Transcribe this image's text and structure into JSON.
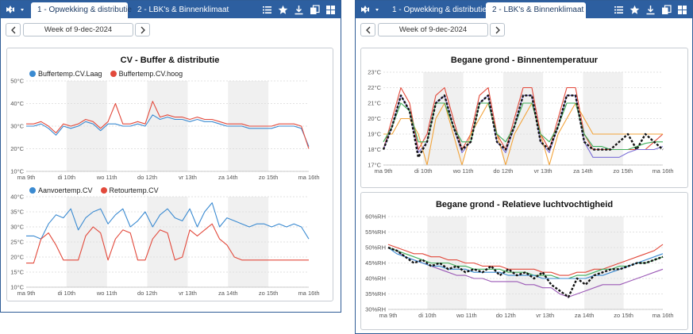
{
  "colors": {
    "header": "#2d5fa0",
    "blue": "#3a8ad1",
    "red": "#e2493b",
    "band": "#f0f0f0"
  },
  "windows": [
    {
      "tabs": [
        {
          "label": "1 - Opwekking & distributie",
          "active": true
        },
        {
          "label": "2 - LBK's & Binnenklimaat",
          "active": false
        }
      ],
      "toolbar_icons": [
        "list-icon",
        "star-icon",
        "download-icon",
        "copy-window-icon",
        "grid-icon"
      ],
      "week_label": "Week of 9-dec-2024",
      "chart_title": "CV - Buffer & distributie"
    },
    {
      "tabs": [
        {
          "label": "1 - Opwekking & distributie",
          "active": false
        },
        {
          "label": "2 - LBK's & Binnenklimaat",
          "active": true
        }
      ],
      "toolbar_icons": [
        "list-icon",
        "star-icon",
        "download-icon",
        "copy-window-icon",
        "grid-icon"
      ],
      "week_label": "Week of 9-dec-2024"
    }
  ],
  "chart_data": [
    {
      "type": "line",
      "title": "",
      "x_ticks": [
        "ma 9th",
        "di 10th",
        "wo 11th",
        "do 12th",
        "vr 13th",
        "za 14th",
        "zo 15th",
        "ma 16th"
      ],
      "y_ticks": [
        "50°C",
        "40°C",
        "30°C",
        "20°C",
        "10°C"
      ],
      "ylim": [
        10,
        50
      ],
      "legend": "top-left",
      "series": [
        {
          "name": "Buffertemp.CV.Laag",
          "color": "#3a8ad1",
          "values": [
            30,
            30,
            31,
            29,
            26,
            30,
            29,
            30,
            32,
            31,
            28,
            31,
            31,
            30,
            30,
            31,
            30,
            35,
            33,
            34,
            33,
            33,
            32,
            33,
            32,
            32,
            31,
            30,
            30,
            30,
            29,
            29,
            29,
            29,
            30,
            30,
            30,
            29,
            21
          ]
        },
        {
          "name": "Buffertemp.CV.hoog",
          "color": "#e2493b",
          "values": [
            31,
            31,
            32,
            30,
            27,
            31,
            30,
            31,
            33,
            32,
            29,
            32,
            40,
            31,
            31,
            32,
            31,
            41,
            34,
            35,
            34,
            34,
            33,
            34,
            33,
            33,
            32,
            31,
            31,
            31,
            30,
            30,
            30,
            30,
            31,
            31,
            31,
            30,
            20
          ]
        }
      ]
    },
    {
      "type": "line",
      "title": "",
      "x_ticks": [
        "ma 9th",
        "di 10th",
        "wo 11th",
        "do 12th",
        "vr 13th",
        "za 14th",
        "zo 15th",
        "ma 16th"
      ],
      "y_ticks": [
        "40°C",
        "35°C",
        "30°C",
        "25°C",
        "20°C",
        "15°C",
        "10°C"
      ],
      "ylim": [
        10,
        40
      ],
      "legend": "top-left",
      "series": [
        {
          "name": "Aanvoertemp.CV",
          "color": "#3a8ad1",
          "values": [
            27,
            27,
            26,
            31,
            34,
            33,
            36,
            29,
            33,
            35,
            36,
            31,
            34,
            36,
            30,
            32,
            35,
            30,
            34,
            36,
            33,
            32,
            36,
            30,
            35,
            38,
            30,
            33,
            32,
            31,
            30,
            31,
            31,
            30,
            31,
            30,
            31,
            30,
            26
          ]
        },
        {
          "name": "Retourtemp.CV",
          "color": "#e2493b",
          "values": [
            18,
            18,
            26,
            28,
            24,
            19,
            19,
            19,
            27,
            30,
            28,
            19,
            26,
            29,
            28,
            19,
            19,
            26,
            29,
            28,
            19,
            20,
            29,
            27,
            29,
            31,
            26,
            24,
            20,
            19,
            19,
            19,
            19,
            19,
            19,
            19,
            19,
            19,
            19
          ]
        }
      ]
    },
    {
      "type": "line",
      "title": "Begane grond - Binnentemperatuur",
      "x_ticks": [
        "ma 9th",
        "di 10th",
        "wo 11th",
        "do 12th",
        "vr 13th",
        "za 14th",
        "zo 15th",
        "ma 16th"
      ],
      "y_ticks": [
        "23°C",
        "22°C",
        "21°C",
        "20°C",
        "19°C",
        "18°C",
        "17°C"
      ],
      "ylim": [
        17,
        23
      ],
      "legend": "none",
      "series": [
        {
          "color": "#e2493b",
          "values": [
            18,
            20,
            22,
            21,
            18,
            19,
            21.5,
            22,
            20,
            18,
            19,
            21.5,
            22,
            19,
            18,
            20,
            22,
            22,
            19,
            18,
            20,
            22,
            22,
            19,
            18,
            18,
            18,
            18,
            18,
            18,
            18,
            18.5,
            19
          ]
        },
        {
          "color": "#7b6fd6",
          "values": [
            18,
            19.5,
            21.5,
            20.5,
            17.8,
            18.5,
            21,
            21.5,
            19.5,
            17.8,
            18.5,
            21,
            21.5,
            18.5,
            17.8,
            19.5,
            21.5,
            21.5,
            18.5,
            17.8,
            19.5,
            21.5,
            21.5,
            18.5,
            17.5,
            17.5,
            17.5,
            17.5,
            17.8,
            18,
            18,
            18,
            18.2
          ]
        },
        {
          "color": "#f2a33a",
          "values": [
            19,
            19,
            20,
            20,
            19,
            17,
            20,
            21,
            19,
            17,
            19,
            20,
            21,
            19,
            17,
            19,
            20,
            21,
            19,
            17,
            19,
            20,
            21,
            20,
            19,
            19,
            19,
            19,
            19,
            19,
            19,
            19,
            19
          ]
        },
        {
          "color": "#3fae5a",
          "values": [
            18.5,
            19.5,
            21,
            20.5,
            18.5,
            18.5,
            21,
            21,
            19.5,
            18.5,
            18.5,
            21,
            21,
            19,
            18.5,
            19.5,
            21,
            21,
            19,
            18.5,
            19.5,
            21,
            21,
            19,
            18.2,
            18.2,
            18,
            18,
            18,
            18.2,
            18.4,
            18.5,
            18.5
          ]
        },
        {
          "color": "#111111",
          "dashed": true,
          "values": [
            18,
            19.5,
            21.5,
            20.5,
            17.5,
            18.5,
            21,
            21.5,
            19.5,
            18,
            18.5,
            21,
            21.5,
            18.5,
            18,
            19.5,
            21.5,
            21.5,
            18.5,
            18,
            19.5,
            21.5,
            21.5,
            18.5,
            18,
            18,
            18,
            18.5,
            19,
            18,
            19,
            18.5,
            18
          ]
        }
      ]
    },
    {
      "type": "line",
      "title": "Begane grond - Relatieve luchtvochtigheid",
      "x_ticks": [
        "ma 9th",
        "di 10th",
        "wo 11th",
        "do 12th",
        "vr 13th",
        "za 14th",
        "zo 15th",
        "ma 16th"
      ],
      "y_ticks": [
        "60%RH",
        "55%RH",
        "50%RH",
        "45%RH",
        "40%RH",
        "35%RH",
        "30%RH"
      ],
      "ylim": [
        30,
        60
      ],
      "legend": "none",
      "series": [
        {
          "color": "#e2493b",
          "values": [
            51,
            50,
            49,
            48,
            48,
            47,
            47,
            46,
            46,
            45,
            45,
            44,
            44,
            44,
            43,
            43,
            43,
            43,
            42,
            42,
            41,
            41,
            42,
            42,
            43,
            43,
            44,
            45,
            46,
            47,
            48,
            49,
            51
          ]
        },
        {
          "color": "#9b59b6",
          "values": [
            50,
            49,
            47,
            46,
            45,
            44,
            43,
            42,
            41,
            41,
            40,
            40,
            39,
            39,
            39,
            39,
            38,
            38,
            37,
            37,
            35,
            34,
            35,
            36,
            37,
            38,
            38,
            38,
            39,
            40,
            41,
            42,
            43
          ]
        },
        {
          "color": "#3fae5a",
          "values": [
            50,
            49,
            48,
            47,
            46,
            45,
            45,
            45,
            44,
            44,
            43,
            43,
            43,
            43,
            42,
            42,
            42,
            41,
            41,
            41,
            40,
            40,
            41,
            41,
            42,
            43,
            43,
            44,
            44,
            45,
            45,
            46,
            47
          ]
        },
        {
          "color": "#3a8ad1",
          "values": [
            50,
            48,
            47,
            46,
            45,
            44,
            44,
            43,
            43,
            43,
            42,
            42,
            42,
            42,
            41,
            41,
            41,
            41,
            40,
            40,
            40,
            40,
            40,
            40,
            41,
            41,
            42,
            43,
            44,
            45,
            46,
            47,
            48
          ]
        },
        {
          "color": "#111111",
          "dashed": true,
          "values": [
            50,
            49,
            47,
            45,
            46,
            44,
            45,
            43,
            44,
            42,
            43,
            42,
            44,
            41,
            43,
            41,
            42,
            40,
            42,
            38,
            36,
            34,
            40,
            38,
            41,
            42,
            43,
            43,
            44,
            45,
            45,
            46,
            47
          ]
        }
      ]
    }
  ]
}
